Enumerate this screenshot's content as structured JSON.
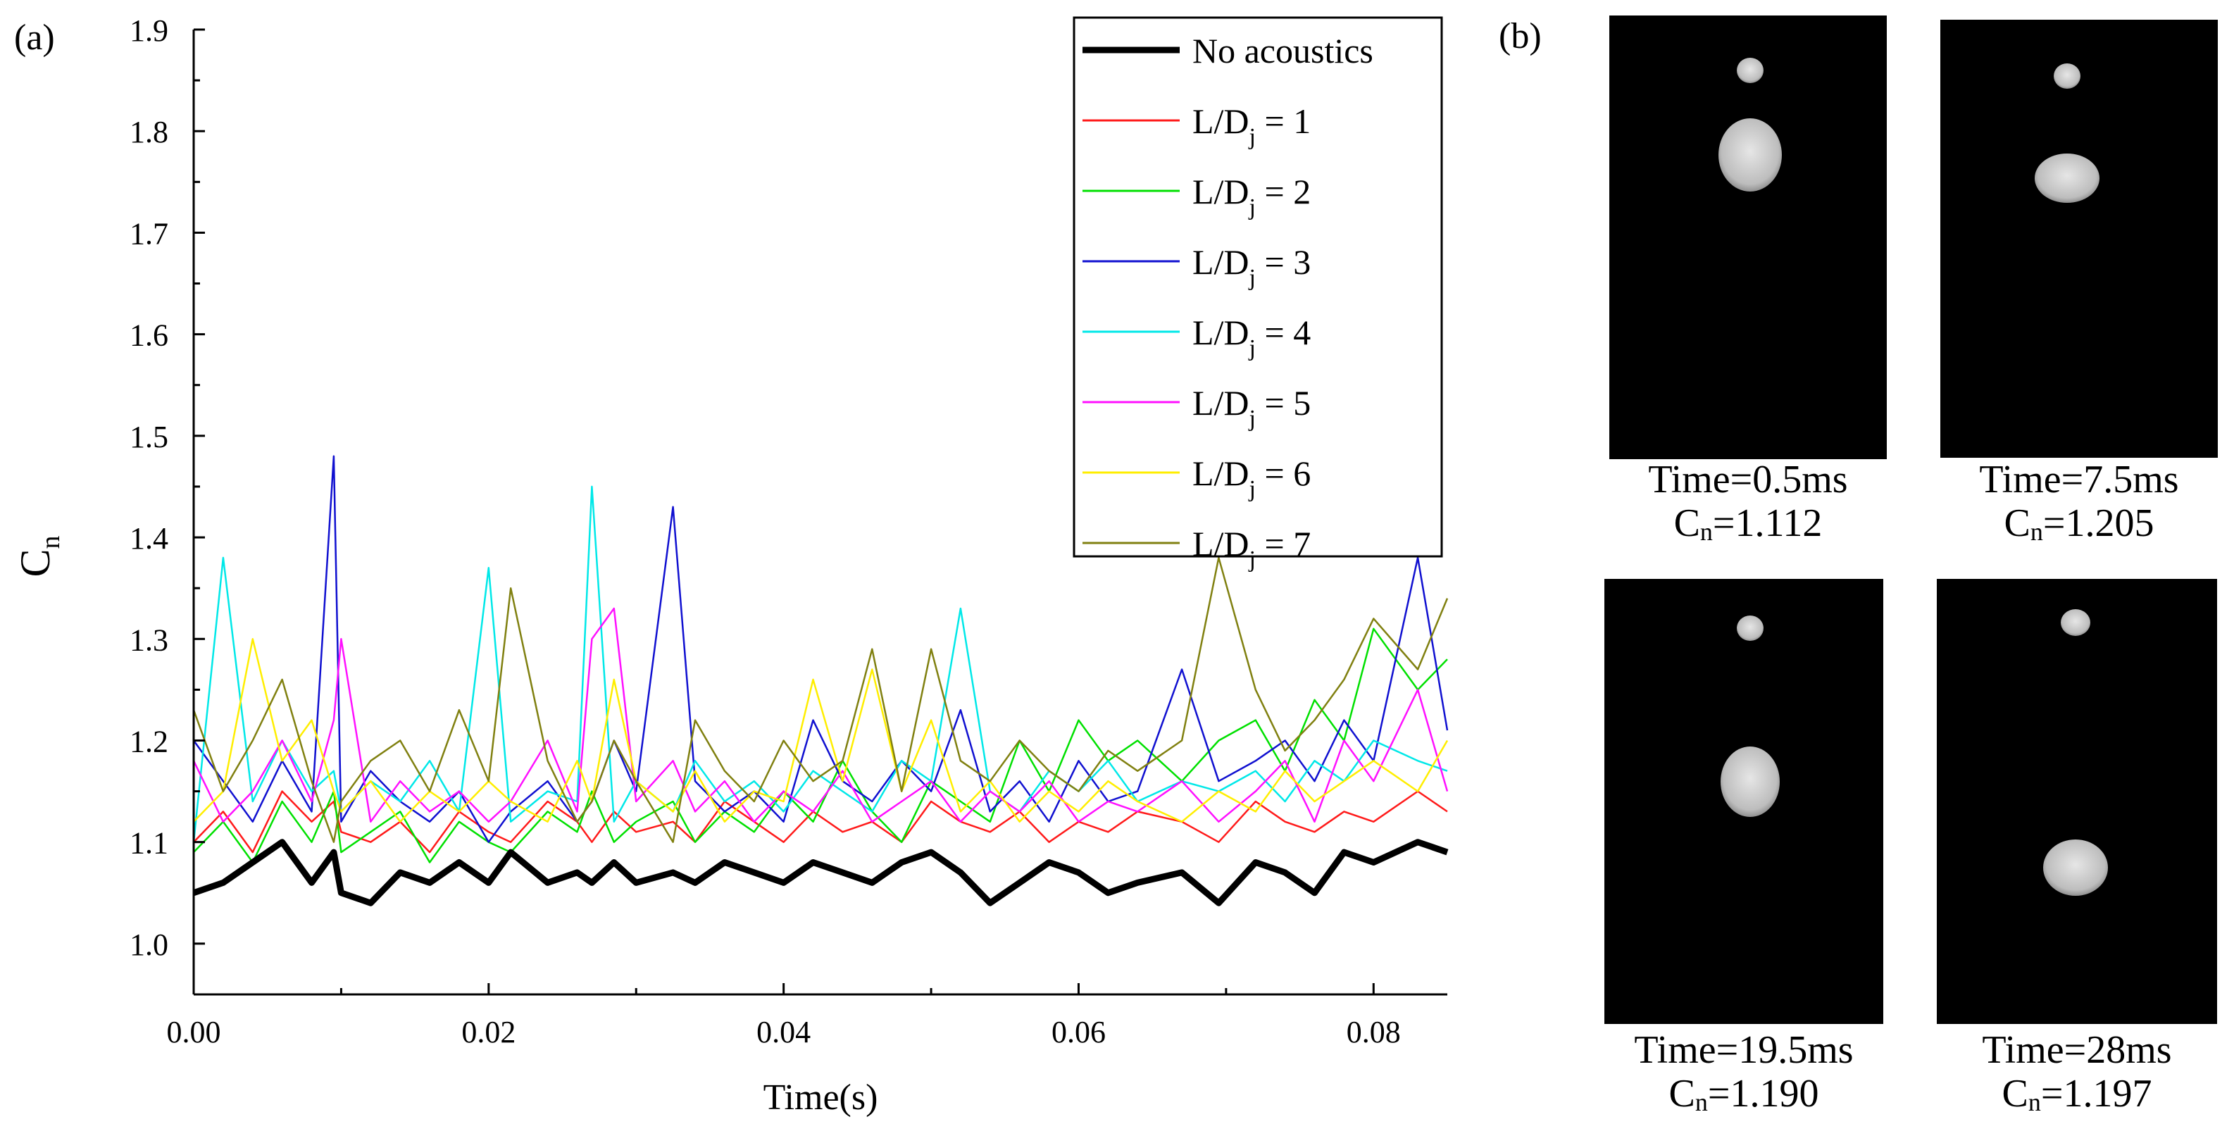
{
  "panel_a_label": "(a)",
  "panel_b_label": "(b)",
  "chart_data": {
    "type": "line",
    "xlabel": "Time(s)",
    "ylabel": {
      "main": "C",
      "sub": "n"
    },
    "xlim": [
      0,
      0.085
    ],
    "ylim": [
      0.95,
      1.9
    ],
    "xticks": [
      "0.00",
      "0.02",
      "0.04",
      "0.06",
      "0.08"
    ],
    "xtick_values": [
      0,
      0.02,
      0.04,
      0.06,
      0.08
    ],
    "yticks": [
      "1.0",
      "1.1",
      "1.2",
      "1.3",
      "1.4",
      "1.5",
      "1.6",
      "1.7",
      "1.8",
      "1.9"
    ],
    "ytick_values": [
      1.0,
      1.1,
      1.2,
      1.3,
      1.4,
      1.5,
      1.6,
      1.7,
      1.8,
      1.9
    ],
    "x": [
      0,
      0.002,
      0.004,
      0.006,
      0.008,
      0.0095,
      0.01,
      0.012,
      0.014,
      0.016,
      0.018,
      0.02,
      0.0215,
      0.024,
      0.026,
      0.027,
      0.0285,
      0.03,
      0.0325,
      0.034,
      0.036,
      0.038,
      0.04,
      0.042,
      0.044,
      0.046,
      0.048,
      0.05,
      0.052,
      0.054,
      0.056,
      0.058,
      0.06,
      0.062,
      0.064,
      0.067,
      0.0695,
      0.072,
      0.074,
      0.076,
      0.078,
      0.08,
      0.083,
      0.085
    ],
    "legend_position": "top-right",
    "series": [
      {
        "name": "No acoustics",
        "name_main": "No acoustics",
        "name_sub": "",
        "name_tail": "",
        "color": "#000000",
        "width": 9,
        "values": [
          1.05,
          1.06,
          1.08,
          1.1,
          1.06,
          1.09,
          1.05,
          1.04,
          1.07,
          1.06,
          1.08,
          1.06,
          1.09,
          1.06,
          1.07,
          1.06,
          1.08,
          1.06,
          1.07,
          1.06,
          1.08,
          1.07,
          1.06,
          1.08,
          1.07,
          1.06,
          1.08,
          1.09,
          1.07,
          1.04,
          1.06,
          1.08,
          1.07,
          1.05,
          1.06,
          1.07,
          1.04,
          1.08,
          1.07,
          1.05,
          1.09,
          1.08,
          1.1,
          1.09
        ]
      },
      {
        "name": "L/Dj = 1",
        "name_main": "L/D",
        "name_sub": "j",
        "name_tail": " = 1",
        "color": "#ff1a1a",
        "width": 2.5,
        "values": [
          1.1,
          1.13,
          1.09,
          1.15,
          1.12,
          1.14,
          1.11,
          1.1,
          1.12,
          1.09,
          1.13,
          1.11,
          1.1,
          1.14,
          1.12,
          1.1,
          1.13,
          1.11,
          1.12,
          1.1,
          1.14,
          1.12,
          1.1,
          1.13,
          1.11,
          1.12,
          1.1,
          1.14,
          1.12,
          1.11,
          1.13,
          1.1,
          1.12,
          1.11,
          1.13,
          1.12,
          1.1,
          1.14,
          1.12,
          1.11,
          1.13,
          1.12,
          1.15,
          1.13
        ]
      },
      {
        "name": "L/Dj = 2",
        "name_main": "L/D",
        "name_sub": "j",
        "name_tail": " = 2",
        "color": "#00e000",
        "width": 2.5,
        "values": [
          1.09,
          1.12,
          1.08,
          1.14,
          1.1,
          1.15,
          1.09,
          1.11,
          1.13,
          1.08,
          1.12,
          1.1,
          1.09,
          1.13,
          1.11,
          1.15,
          1.1,
          1.12,
          1.14,
          1.1,
          1.13,
          1.11,
          1.15,
          1.12,
          1.18,
          1.13,
          1.1,
          1.16,
          1.14,
          1.12,
          1.2,
          1.15,
          1.22,
          1.18,
          1.2,
          1.16,
          1.2,
          1.22,
          1.17,
          1.24,
          1.2,
          1.31,
          1.25,
          1.28
        ]
      },
      {
        "name": "L/Dj = 3",
        "name_main": "L/D",
        "name_sub": "j",
        "name_tail": " = 3",
        "color": "#1010d0",
        "width": 2.5,
        "values": [
          1.2,
          1.16,
          1.12,
          1.18,
          1.13,
          1.48,
          1.12,
          1.17,
          1.14,
          1.12,
          1.15,
          1.1,
          1.13,
          1.16,
          1.12,
          1.14,
          1.2,
          1.15,
          1.43,
          1.16,
          1.13,
          1.15,
          1.12,
          1.22,
          1.16,
          1.14,
          1.18,
          1.15,
          1.23,
          1.13,
          1.16,
          1.12,
          1.18,
          1.14,
          1.15,
          1.27,
          1.16,
          1.18,
          1.2,
          1.16,
          1.22,
          1.18,
          1.38,
          1.21
        ]
      },
      {
        "name": "L/Dj = 4",
        "name_main": "L/D",
        "name_sub": "j",
        "name_tail": " = 4",
        "color": "#00e8e8",
        "width": 2.5,
        "values": [
          1.1,
          1.38,
          1.14,
          1.2,
          1.15,
          1.17,
          1.13,
          1.16,
          1.14,
          1.18,
          1.13,
          1.37,
          1.12,
          1.15,
          1.14,
          1.45,
          1.12,
          1.16,
          1.13,
          1.18,
          1.14,
          1.16,
          1.13,
          1.17,
          1.15,
          1.13,
          1.18,
          1.16,
          1.33,
          1.15,
          1.13,
          1.17,
          1.15,
          1.18,
          1.14,
          1.16,
          1.15,
          1.17,
          1.14,
          1.18,
          1.16,
          1.2,
          1.18,
          1.17
        ]
      },
      {
        "name": "L/Dj = 5",
        "name_main": "L/D",
        "name_sub": "j",
        "name_tail": " = 5",
        "color": "#ff10ff",
        "width": 2.5,
        "values": [
          1.18,
          1.12,
          1.15,
          1.2,
          1.14,
          1.22,
          1.3,
          1.12,
          1.16,
          1.13,
          1.15,
          1.12,
          1.14,
          1.2,
          1.13,
          1.3,
          1.33,
          1.14,
          1.18,
          1.13,
          1.16,
          1.12,
          1.15,
          1.13,
          1.17,
          1.12,
          1.14,
          1.16,
          1.12,
          1.15,
          1.13,
          1.16,
          1.12,
          1.14,
          1.13,
          1.16,
          1.12,
          1.15,
          1.18,
          1.12,
          1.2,
          1.16,
          1.25,
          1.15
        ]
      },
      {
        "name": "L/Dj = 6",
        "name_main": "L/D",
        "name_sub": "j",
        "name_tail": " = 6",
        "color": "#ffee00",
        "width": 2.5,
        "values": [
          1.12,
          1.15,
          1.3,
          1.18,
          1.22,
          1.15,
          1.13,
          1.16,
          1.12,
          1.15,
          1.13,
          1.16,
          1.14,
          1.12,
          1.18,
          1.14,
          1.26,
          1.16,
          1.13,
          1.17,
          1.12,
          1.15,
          1.14,
          1.26,
          1.16,
          1.27,
          1.15,
          1.22,
          1.13,
          1.16,
          1.12,
          1.15,
          1.13,
          1.16,
          1.14,
          1.12,
          1.15,
          1.13,
          1.17,
          1.14,
          1.16,
          1.18,
          1.15,
          1.2
        ]
      },
      {
        "name": "L/Dj = 7",
        "name_main": "L/D",
        "name_sub": "j",
        "name_tail": " = 7",
        "color": "#808010",
        "width": 2.5,
        "values": [
          1.23,
          1.15,
          1.2,
          1.26,
          1.16,
          1.1,
          1.14,
          1.18,
          1.2,
          1.15,
          1.23,
          1.16,
          1.35,
          1.18,
          1.12,
          1.14,
          1.2,
          1.16,
          1.1,
          1.22,
          1.17,
          1.14,
          1.2,
          1.16,
          1.18,
          1.29,
          1.15,
          1.29,
          1.18,
          1.16,
          1.2,
          1.17,
          1.15,
          1.19,
          1.17,
          1.2,
          1.38,
          1.25,
          1.19,
          1.22,
          1.26,
          1.32,
          1.27,
          1.34
        ]
      }
    ]
  },
  "snapshots": [
    {
      "time": "Time=0.5ms",
      "cn_main": "C",
      "cn_sub": "n",
      "cn_value": "=1.112"
    },
    {
      "time": "Time=7.5ms",
      "cn_main": "C",
      "cn_sub": "n",
      "cn_value": "=1.205"
    },
    {
      "time": "Time=19.5ms",
      "cn_main": "C",
      "cn_sub": "n",
      "cn_value": "=1.190"
    },
    {
      "time": "Time=28ms",
      "cn_main": "C",
      "cn_sub": "n",
      "cn_value": "=1.197"
    }
  ]
}
